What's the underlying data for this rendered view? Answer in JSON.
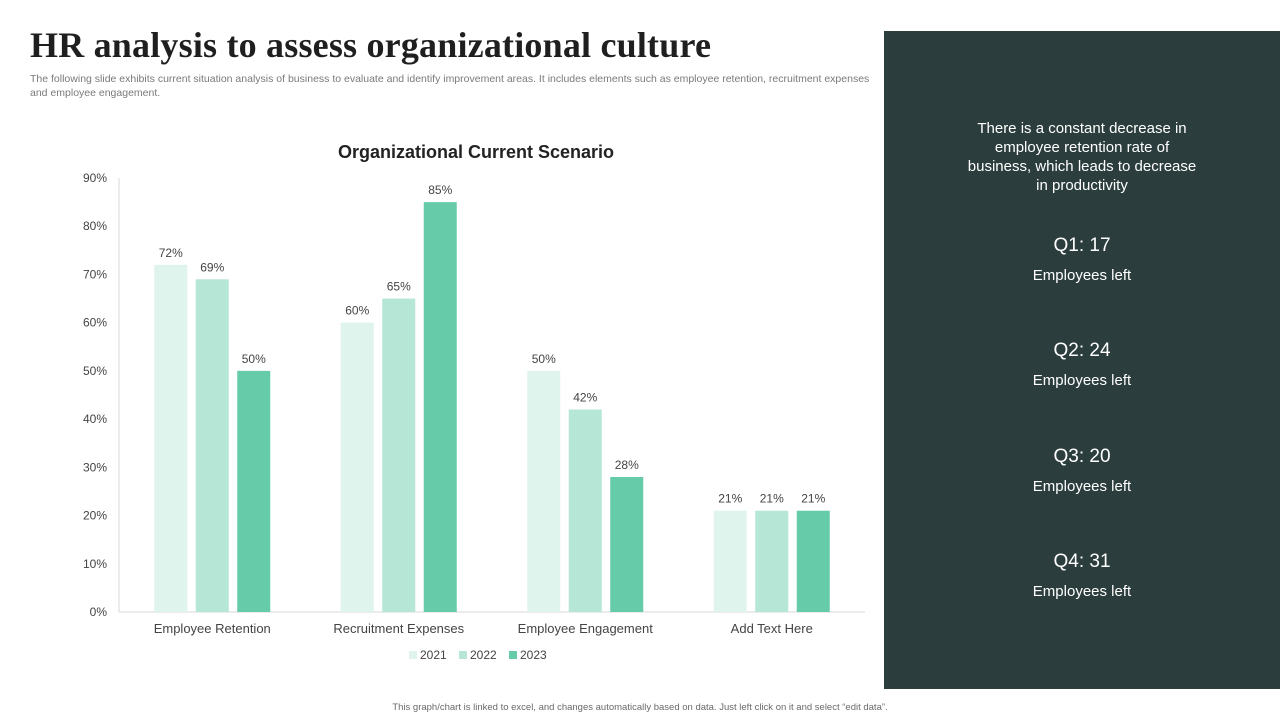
{
  "title": "HR analysis to assess organizational culture",
  "subtitle": "The following slide exhibits current situation analysis of business to evaluate and identify improvement areas. It includes elements such as employee retention, recruitment expenses and employee engagement.",
  "panel": {
    "note": "There is a constant decrease in employee retention rate of business, which leads to decrease in productivity",
    "quarters": [
      {
        "heading": "Q1: 17",
        "sub": "Employees left"
      },
      {
        "heading": "Q2: 24",
        "sub": "Employees left"
      },
      {
        "heading": "Q3: 20",
        "sub": "Employees left"
      },
      {
        "heading": "Q4: 31",
        "sub": "Employees left"
      }
    ]
  },
  "footer": "This graph/chart is linked to excel, and changes automatically based on data. Just left click on it and select “edit data”.",
  "colors": {
    "panel_bg": "#2b3e3d",
    "series_2021": "#e0f4ee",
    "series_2022": "#b6e6d6",
    "series_2023": "#66cba8"
  },
  "chart_data": {
    "type": "bar",
    "title": "Organizational Current Scenario",
    "categories": [
      "Employee Retention",
      "Recruitment Expenses",
      "Employee Engagement",
      "Add Text Here"
    ],
    "series": [
      {
        "name": "2021",
        "values": [
          72,
          60,
          50,
          21
        ],
        "labels": [
          "72%",
          "60%",
          "50%",
          "21%"
        ],
        "color": "#e0f4ee"
      },
      {
        "name": "2022",
        "values": [
          69,
          65,
          42,
          21
        ],
        "labels": [
          "69%",
          "65%",
          "42%",
          "21%"
        ],
        "color": "#b6e6d6"
      },
      {
        "name": "2023",
        "values": [
          50,
          85,
          28,
          21
        ],
        "labels": [
          "50%",
          "85%",
          "28%",
          "21%"
        ],
        "color": "#66cba8"
      }
    ],
    "ylim": [
      0,
      90
    ],
    "yticks": [
      0,
      10,
      20,
      30,
      40,
      50,
      60,
      70,
      80,
      90
    ],
    "ytick_labels": [
      "0%",
      "10%",
      "20%",
      "30%",
      "40%",
      "50%",
      "60%",
      "70%",
      "80%",
      "90%"
    ],
    "xlabel": "",
    "ylabel": "",
    "grid": false,
    "legend": "bottom"
  }
}
